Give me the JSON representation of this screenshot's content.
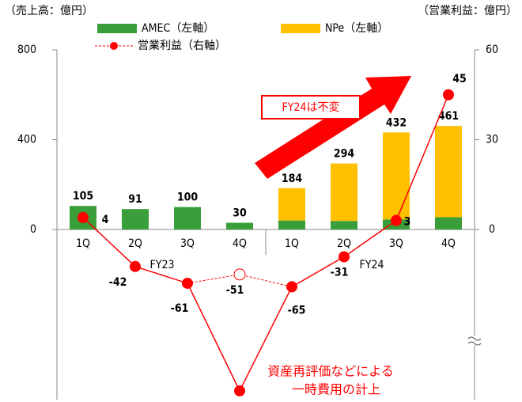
{
  "chart_data": {
    "type": "bar",
    "left_unit": "（売上高：億円）",
    "right_unit": "（営業利益：億円）",
    "categories": [
      "1Q",
      "2Q",
      "3Q",
      "4Q",
      "1Q",
      "2Q",
      "3Q",
      "4Q"
    ],
    "groups": [
      "FY23",
      "FY24"
    ],
    "series": [
      {
        "name": "AMEC（左軸）",
        "color": "#3a9e3a",
        "values": [
          105,
          91,
          100,
          30,
          40,
          38,
          45,
          55
        ]
      },
      {
        "name": "NPe（左軸）",
        "color": "#ffc000",
        "values": [
          null,
          null,
          null,
          null,
          144,
          256,
          387,
          406
        ]
      },
      {
        "name": "営業利益（右軸）",
        "color": "#ff0000",
        "axis": "y2",
        "type": "line",
        "values": [
          4,
          -42,
          -61,
          -649,
          -65,
          -31,
          3,
          45
        ]
      }
    ],
    "adjusted": {
      "values": [
        null,
        null,
        null,
        -51,
        null,
        null,
        null,
        null
      ]
    },
    "totals": [
      105,
      91,
      100,
      30,
      184,
      294,
      432,
      461
    ],
    "ylim": [
      0,
      800
    ],
    "yticks": [
      0,
      400,
      800
    ],
    "y2lim": [
      -700,
      60
    ],
    "y2ticks": [
      0,
      30,
      60
    ],
    "y2_break": -70,
    "annotations": [
      "FY24は不変",
      "資産再評価などによる",
      "一時費用の計上"
    ]
  }
}
